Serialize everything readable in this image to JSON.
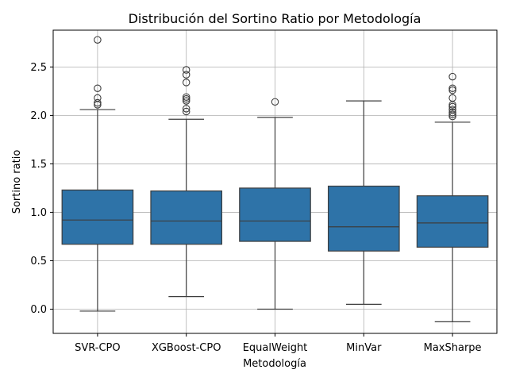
{
  "chart_data": {
    "type": "boxplot",
    "title": "Distribución del Sortino Ratio por Metodología",
    "xlabel": "Metodología",
    "ylabel": "Sortino ratio",
    "ylim": [
      -0.25,
      2.88
    ],
    "yticks": [
      0.0,
      0.5,
      1.0,
      1.5,
      2.0,
      2.5
    ],
    "ytick_labels": [
      "0.0",
      "0.5",
      "1.0",
      "1.5",
      "2.0",
      "2.5"
    ],
    "grid": true,
    "box_color": "#2e73a8",
    "line_color": "#3d3d3d",
    "categories": [
      "SVR-CPO",
      "XGBoost-CPO",
      "EqualWeight",
      "MinVar",
      "MaxSharpe"
    ],
    "boxes": [
      {
        "name": "SVR-CPO",
        "whisker_low": -0.02,
        "q1": 0.67,
        "median": 0.92,
        "q3": 1.23,
        "whisker_high": 2.06,
        "outliers": [
          2.11,
          2.13,
          2.18,
          2.28,
          2.78
        ]
      },
      {
        "name": "XGBoost-CPO",
        "whisker_low": 0.13,
        "q1": 0.67,
        "median": 0.91,
        "q3": 1.22,
        "whisker_high": 1.96,
        "outliers": [
          2.04,
          2.07,
          2.15,
          2.17,
          2.19,
          2.34,
          2.42,
          2.47
        ]
      },
      {
        "name": "EqualWeight",
        "whisker_low": 0.0,
        "q1": 0.7,
        "median": 0.91,
        "q3": 1.25,
        "whisker_high": 1.98,
        "outliers": [
          2.14
        ]
      },
      {
        "name": "MinVar",
        "whisker_low": 0.05,
        "q1": 0.6,
        "median": 0.85,
        "q3": 1.27,
        "whisker_high": 2.15,
        "outliers": []
      },
      {
        "name": "MaxSharpe",
        "whisker_low": -0.13,
        "q1": 0.64,
        "median": 0.89,
        "q3": 1.17,
        "whisker_high": 1.93,
        "outliers": [
          1.99,
          2.01,
          2.03,
          2.06,
          2.09,
          2.11,
          2.18,
          2.26,
          2.28,
          2.4
        ]
      }
    ]
  }
}
